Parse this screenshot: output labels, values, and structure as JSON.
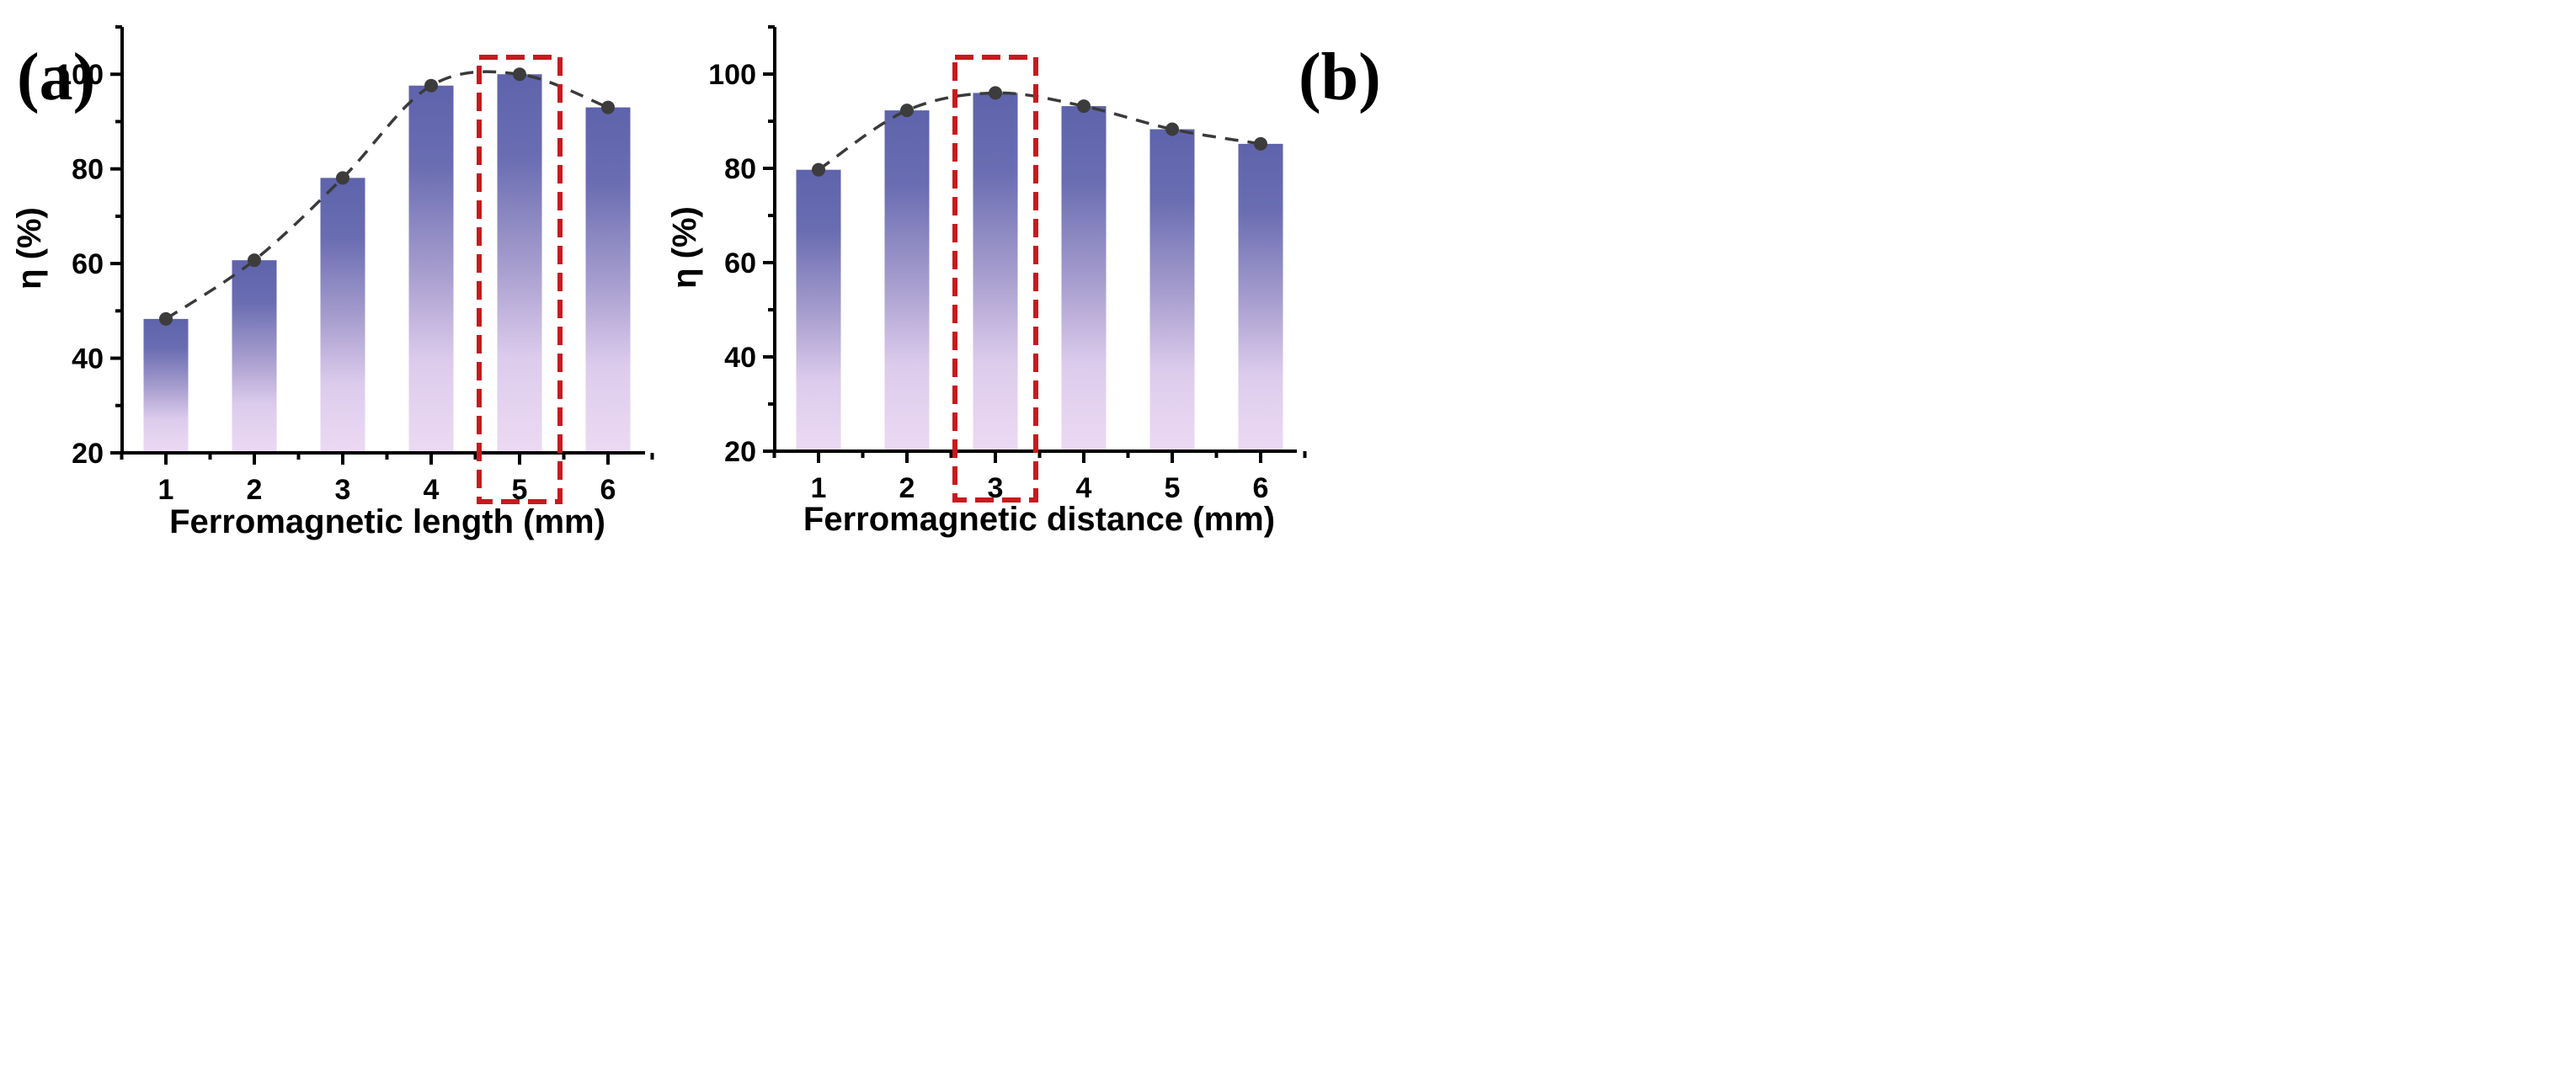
{
  "chart_data": [
    {
      "panel_label": "(a)",
      "type": "bar",
      "categories": [
        "1",
        "2",
        "3",
        "4",
        "5",
        "6"
      ],
      "values": [
        48.3,
        60.7,
        78.1,
        97.6,
        100.0,
        93.0
      ],
      "xlabel": "Ferromagnetic length (mm)",
      "ylabel": "η (%)",
      "ylim": [
        20,
        110
      ],
      "yticks": [
        20,
        40,
        60,
        80,
        100
      ],
      "highlight_category": "5",
      "trend_line": "dashed with markers"
    },
    {
      "panel_label": "(b)",
      "type": "bar",
      "categories": [
        "1",
        "2",
        "3",
        "4",
        "5",
        "6"
      ],
      "values": [
        79.7,
        92.3,
        96.0,
        93.2,
        88.3,
        85.2
      ],
      "xlabel": "Ferromagnetic distance (mm)",
      "ylabel": "η (%)",
      "ylim": [
        20,
        110
      ],
      "yticks": [
        20,
        40,
        60,
        80,
        100
      ],
      "highlight_category": "3",
      "trend_line": "dashed with markers"
    }
  ],
  "colors": {
    "bar_top": "#5e63ab",
    "bar_mid": "#a59ccd",
    "bar_bottom": "#ecdaf3",
    "highlight_box": "#c8191e",
    "trend_line": "#3a3a3a",
    "axis": "#000000"
  }
}
